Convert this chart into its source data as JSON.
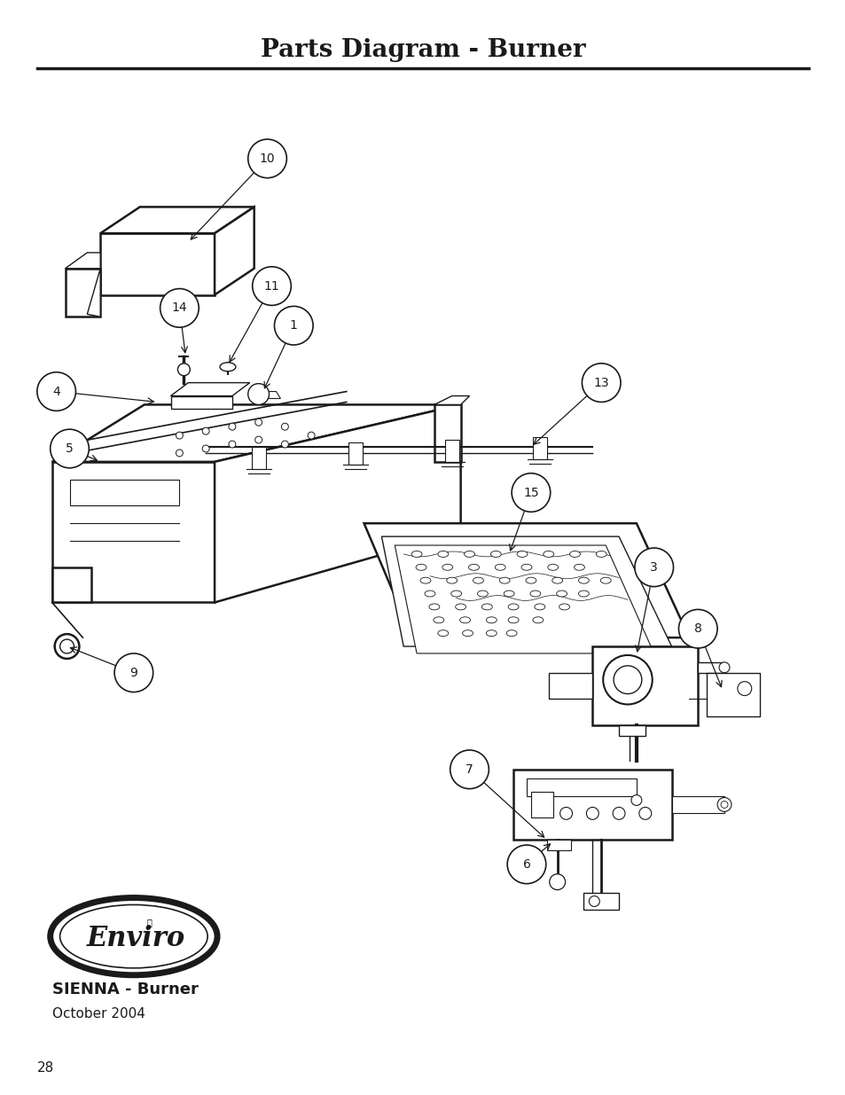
{
  "title": "Parts Diagram - Burner",
  "title_fontsize": 20,
  "page_number": "28",
  "subtitle": "SIENNA - Burner",
  "date": "October 2004",
  "bg": "#ffffff",
  "lc": "#1a1a1a",
  "lw": 1.0,
  "lw_thick": 1.8,
  "label_fs": 10,
  "label_r": 0.025
}
